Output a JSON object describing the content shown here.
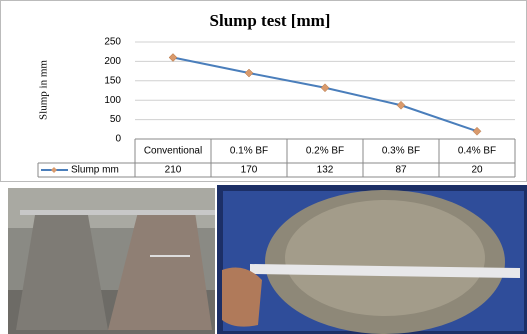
{
  "chart_data": {
    "type": "line",
    "title": "Slump test [mm]",
    "y_label": "Slump in mm",
    "categories": [
      "Conventional",
      "0.1% BF",
      "0.2% BF",
      "0.3% BF",
      "0.4% BF"
    ],
    "series": [
      {
        "name": "Slump mm",
        "color": "#4a7ebb",
        "marker_color": "#d99a6c",
        "values": [
          210,
          170,
          132,
          87,
          20
        ]
      }
    ],
    "ylim": [
      0,
      250
    ],
    "yticks": [
      0,
      50,
      100,
      150,
      200,
      250
    ],
    "grid": true,
    "data_table": true
  }
}
